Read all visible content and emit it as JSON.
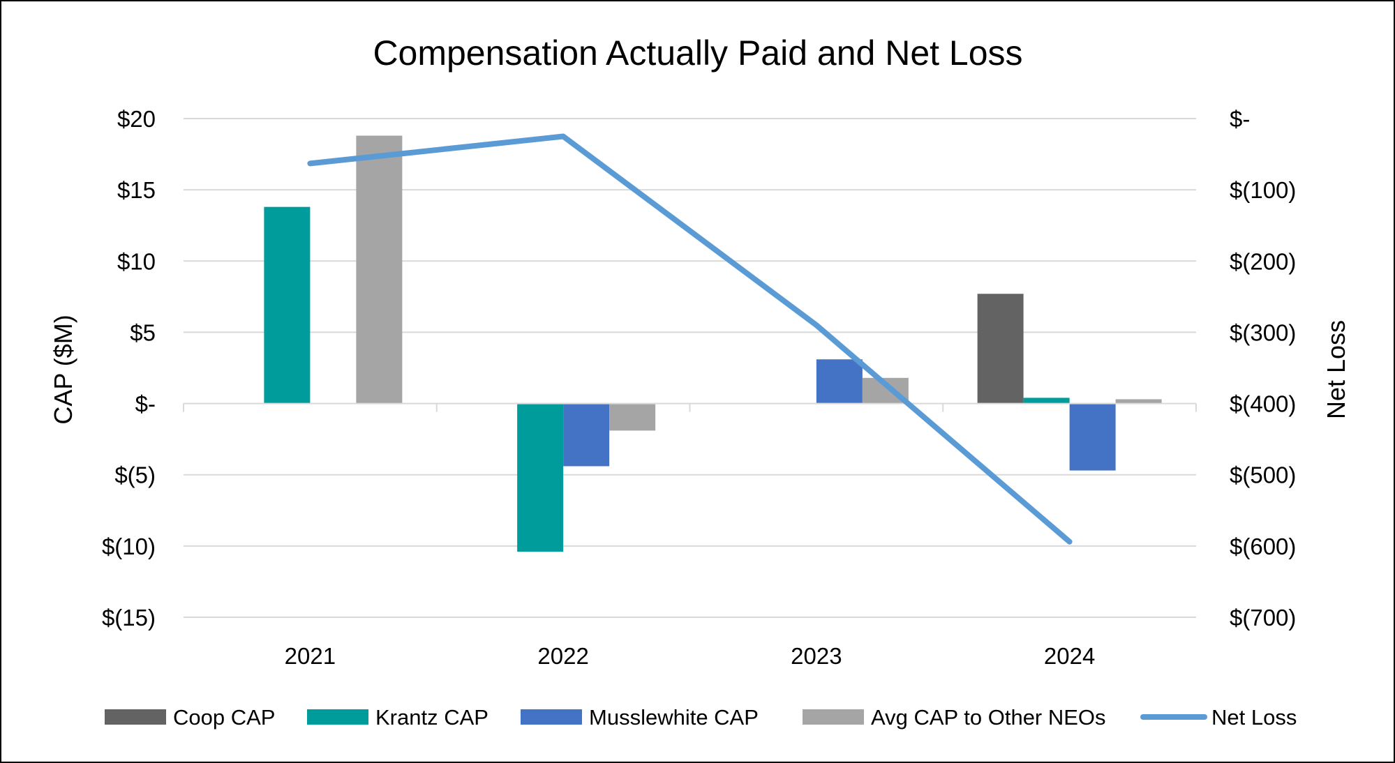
{
  "chart_data": {
    "type": "bar",
    "title": "Compensation Actually Paid and Net Loss",
    "ylabel": "CAP ($M)",
    "y2label": "Net Loss",
    "categories": [
      "2021",
      "2022",
      "2023",
      "2024"
    ],
    "ylim": [
      -15,
      20
    ],
    "y2lim": [
      -700,
      0
    ],
    "yticks": [
      20,
      15,
      10,
      5,
      0,
      -5,
      -10,
      -15
    ],
    "ytick_labels": [
      "$20",
      "$15",
      "$10",
      "$5",
      "$-",
      "$(5)",
      "$(10)",
      "$(15)"
    ],
    "y2ticks": [
      0,
      -100,
      -200,
      -300,
      -400,
      -500,
      -600,
      -700
    ],
    "y2tick_labels": [
      "$-",
      "$(100)",
      "$(200)",
      "$(300)",
      "$(400)",
      "$(500)",
      "$(600)",
      "$(700)"
    ],
    "grid": true,
    "legend_position": "bottom",
    "series": [
      {
        "name": "Coop CAP",
        "kind": "bar",
        "color": "#636363",
        "values": [
          null,
          null,
          null,
          7.7
        ]
      },
      {
        "name": "Krantz CAP",
        "kind": "bar",
        "color": "#009b9b",
        "values": [
          13.8,
          -10.4,
          null,
          0.4
        ]
      },
      {
        "name": "Musslewhite CAP",
        "kind": "bar",
        "color": "#4472c4",
        "values": [
          null,
          -4.4,
          3.1,
          -4.7
        ]
      },
      {
        "name": "Avg CAP to Other NEOs",
        "kind": "bar",
        "color": "#a5a5a5",
        "values": [
          18.8,
          -1.9,
          1.8,
          0.3
        ]
      },
      {
        "name": "Net Loss",
        "kind": "line",
        "axis": "right",
        "color": "#5b9bd5",
        "values": [
          -63,
          -25,
          -290,
          -594
        ]
      }
    ]
  }
}
